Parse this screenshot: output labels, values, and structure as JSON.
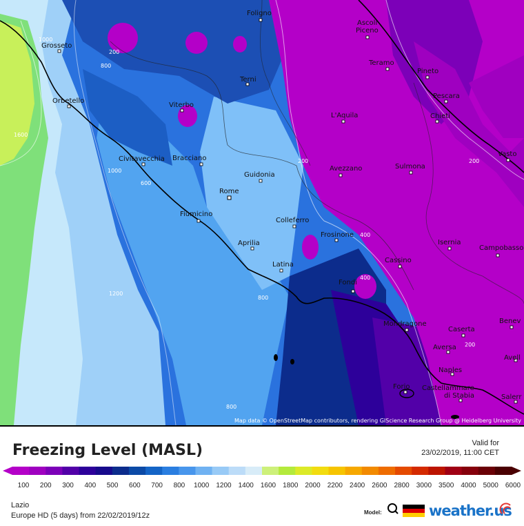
{
  "map": {
    "attribution": "Map data © OpenStreetMap contributors, rendering GIScience Research Group @ Heidelberg University",
    "cities": [
      {
        "name": "Foligno"
      },
      {
        "name": "Ascoli"
      },
      {
        "name": "Piceno"
      },
      {
        "name": "Grosseto"
      },
      {
        "name": "Teramo"
      },
      {
        "name": "Pineto"
      },
      {
        "name": "Terni"
      },
      {
        "name": "Pescara"
      },
      {
        "name": "Orbetello"
      },
      {
        "name": "Viterbo"
      },
      {
        "name": "L'Aquila"
      },
      {
        "name": "Chieti"
      },
      {
        "name": "Vasto"
      },
      {
        "name": "Civitavecchia"
      },
      {
        "name": "Bracciano"
      },
      {
        "name": "Avezzano"
      },
      {
        "name": "Sulmona"
      },
      {
        "name": "Guidonia"
      },
      {
        "name": "Rome"
      },
      {
        "name": "Fiumicino"
      },
      {
        "name": "Colleferro"
      },
      {
        "name": "Frosinone"
      },
      {
        "name": "Isernia"
      },
      {
        "name": "Campobasso"
      },
      {
        "name": "Aprilia"
      },
      {
        "name": "Latina"
      },
      {
        "name": "Cassino"
      },
      {
        "name": "Fondi"
      },
      {
        "name": "Benev"
      },
      {
        "name": "Mondragone"
      },
      {
        "name": "Caserta"
      },
      {
        "name": "Aversa"
      },
      {
        "name": "Avell"
      },
      {
        "name": "Naples"
      },
      {
        "name": "Forio"
      },
      {
        "name": "Castellammare"
      },
      {
        "name": "di Stabia"
      },
      {
        "name": "Salerr"
      }
    ],
    "contour_labels": [
      "1000",
      "200",
      "800",
      "1600",
      "1000",
      "600",
      "200",
      "400",
      "400",
      "1200",
      "800",
      "200",
      "200",
      "800"
    ]
  },
  "legend": {
    "title": "Freezing Level (MASL)",
    "valid_label": "Valid for",
    "valid_time": "23/02/2019, 11:00 CET",
    "ticks": [
      "100",
      "200",
      "300",
      "400",
      "500",
      "600",
      "700",
      "800",
      "1000",
      "1200",
      "1400",
      "1600",
      "1800",
      "2000",
      "2200",
      "2400",
      "2600",
      "2800",
      "3000",
      "3500",
      "4000",
      "5000",
      "6000"
    ],
    "colors": [
      "#b400c8",
      "#9f00c0",
      "#7c00b8",
      "#5200a8",
      "#2d009a",
      "#170a8c",
      "#0c2c8c",
      "#0c4aa6",
      "#1464c6",
      "#2a7ee0",
      "#4896ec",
      "#70b2f2",
      "#98caf6",
      "#bcdcf8",
      "#d8ecf8",
      "#cdf07a",
      "#b4ea3c",
      "#dcea28",
      "#f2dc10",
      "#f6c400",
      "#f6a800",
      "#f28a00",
      "#ee6c00",
      "#e44a00",
      "#d42a00",
      "#bc1400",
      "#a00014",
      "#86000c",
      "#6a0006",
      "#4a0002"
    ]
  },
  "footer": {
    "region": "Lazio",
    "model_run": "Europe HD (5 days) from 22/02/2019/12z",
    "model_label": "Model:",
    "brand": "weather.us"
  }
}
